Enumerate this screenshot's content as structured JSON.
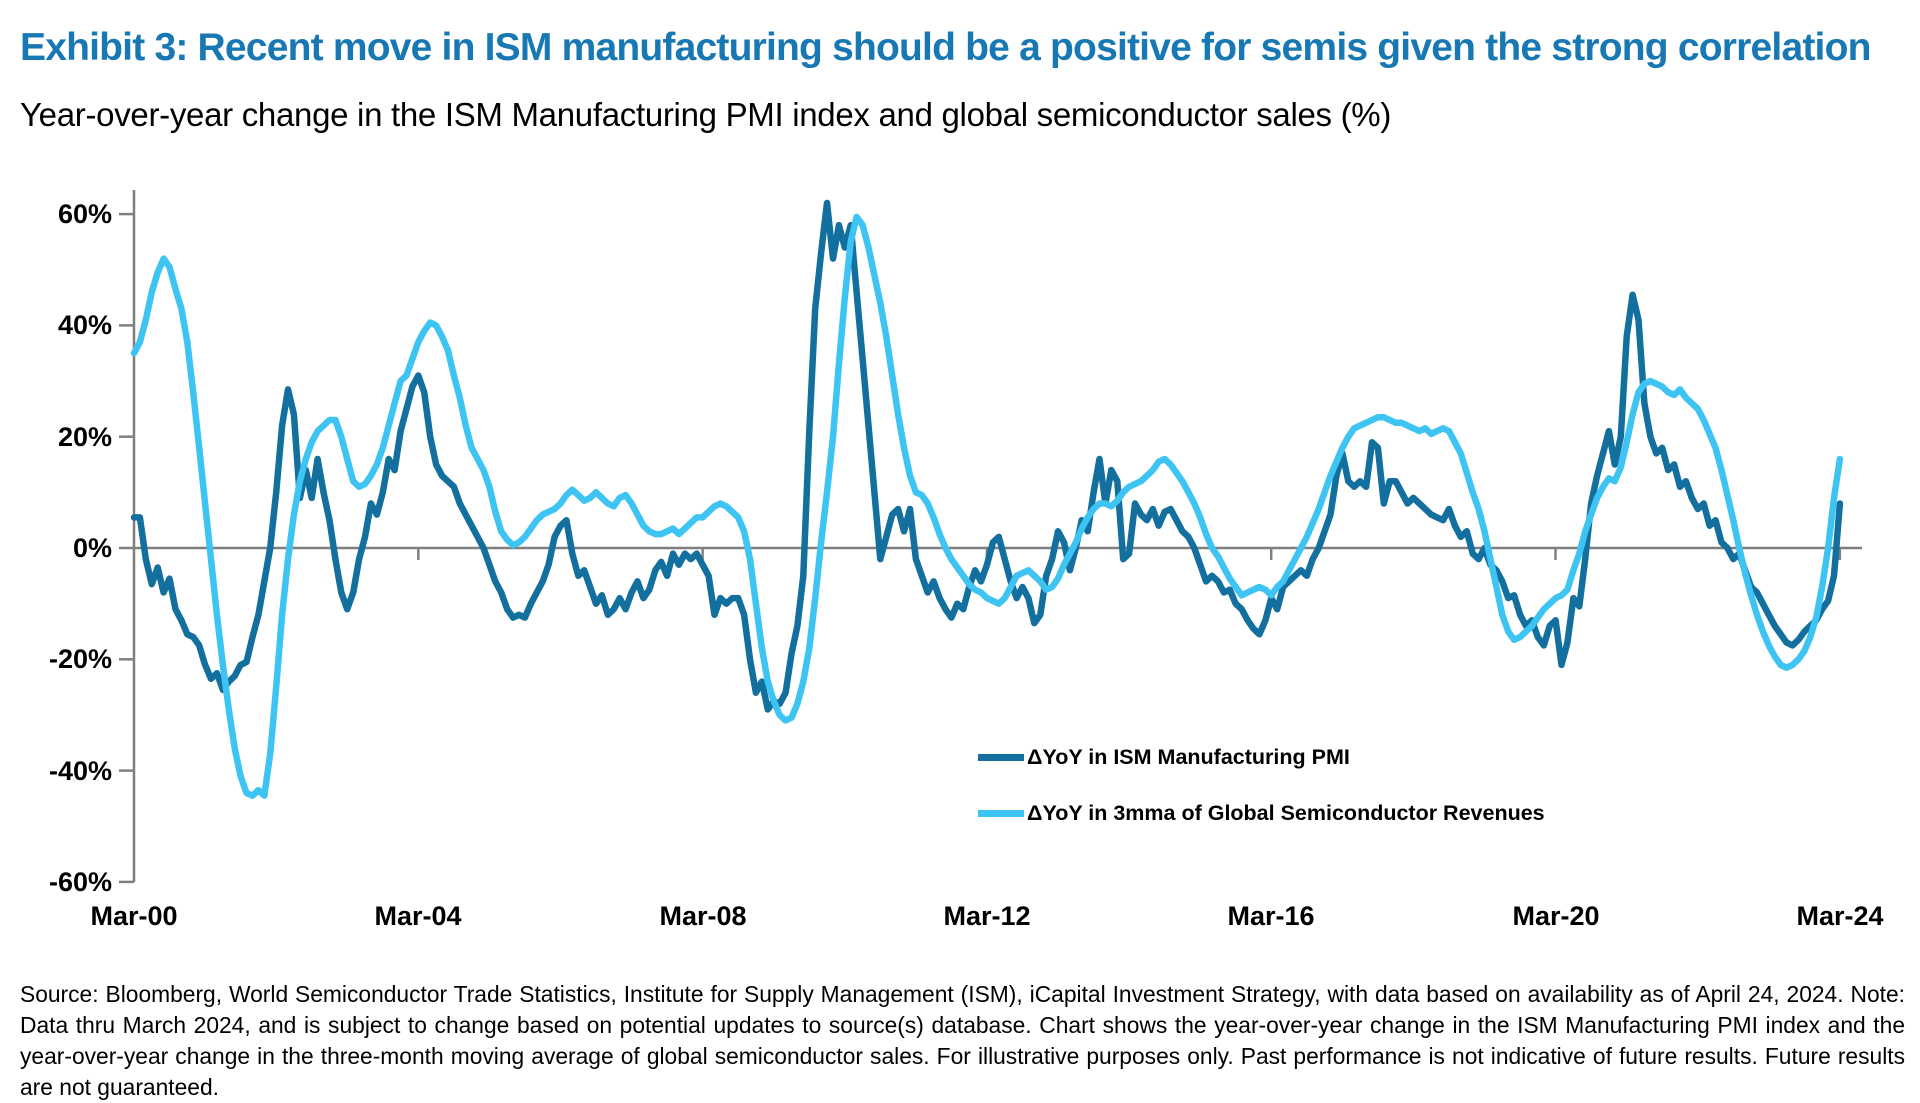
{
  "page": {
    "title": "Exhibit 3: Recent move in ISM manufacturing should be a positive for semis given the strong correlation",
    "subtitle": "Year-over-year change in the ISM Manufacturing PMI index and global semiconductor sales (%)",
    "source_note": "Source: Bloomberg, World Semiconductor Trade Statistics, Institute for Supply Management (ISM), iCapital Investment Strategy, with data based on availability as of April 24, 2024. Note: Data thru March 2024, and is subject to change based on potential updates to source(s) database. Chart shows the year-over-year change in the ISM Manufacturing PMI index and the year-over-year change in the three-month moving average of global semiconductor sales. For illustrative purposes only. Past performance is not indicative of future results. Future results are not guaranteed."
  },
  "chart": {
    "colors": {
      "title_blue": "#1878B3",
      "ism_line": "#136F9E",
      "semis_line": "#3EC4F2",
      "axis_gray": "#7F7F7F",
      "label_black": "#000000"
    },
    "y_axis": {
      "tick_labels": [
        "60%",
        "40%",
        "20%",
        "0%",
        "-20%",
        "-40%",
        "-60%"
      ],
      "tick_values": [
        60,
        40,
        20,
        0,
        -20,
        -40,
        -60
      ]
    },
    "x_axis": {
      "tick_labels": [
        "Mar-00",
        "Mar-04",
        "Mar-08",
        "Mar-12",
        "Mar-16",
        "Mar-20",
        "Mar-24"
      ]
    }
  },
  "chart_data": {
    "type": "line",
    "title": "Year-over-year change in the ISM Manufacturing PMI index and global semiconductor sales (%)",
    "xlabel": "",
    "ylabel": "",
    "x_start": "2000-03",
    "x_end": "2024-03",
    "frequency": "monthly",
    "x_tick_labels": [
      "Mar-00",
      "Mar-04",
      "Mar-08",
      "Mar-12",
      "Mar-16",
      "Mar-20",
      "Mar-24"
    ],
    "y_ticks": [
      60,
      40,
      20,
      0,
      -20,
      -40,
      -60
    ],
    "ylim": [
      -60,
      60
    ],
    "grid": "zero-line-only",
    "legend_position": "inside-right-middle",
    "series": [
      {
        "name": "ΔYoY in ISM Manufacturing PMI",
        "color": "#136F9E",
        "values": [
          5.5,
          5.5,
          -2,
          -6.5,
          -3.5,
          -8,
          -5.5,
          -11,
          -13,
          -15.5,
          -16,
          -17.5,
          -21,
          -23.5,
          -22.5,
          -25.5,
          -24,
          -23,
          -21,
          -20.5,
          -16,
          -12,
          -6,
          0,
          10,
          22,
          28.5,
          24,
          9,
          14,
          9,
          16,
          10,
          5,
          -2,
          -8,
          -11,
          -8,
          -2,
          2,
          8,
          6,
          10,
          16,
          14,
          21,
          25,
          29,
          31,
          28,
          20,
          15,
          13,
          12,
          11,
          8,
          6,
          4,
          2,
          0,
          -3,
          -6,
          -8,
          -11,
          -12.5,
          -12,
          -12.5,
          -10,
          -8,
          -6,
          -3,
          2,
          4,
          5,
          -1,
          -5,
          -4,
          -7,
          -10,
          -8.5,
          -12,
          -11,
          -9,
          -11,
          -8,
          -6,
          -9,
          -7.5,
          -4,
          -2.5,
          -5,
          -1,
          -3,
          -1,
          -2,
          -1,
          -3,
          -5,
          -12,
          -9,
          -10,
          -9,
          -9,
          -12,
          -20,
          -26,
          -24,
          -29,
          -27.5,
          -28,
          -26,
          -19,
          -14,
          -5,
          21,
          43,
          53,
          62,
          52,
          58,
          54,
          58,
          46,
          34,
          22,
          10,
          -2,
          2,
          6,
          7,
          3,
          7,
          -2,
          -5,
          -8,
          -6,
          -9,
          -11,
          -12.5,
          -10,
          -11,
          -7,
          -4,
          -6,
          -3,
          1,
          2,
          -2,
          -6,
          -9,
          -7,
          -9,
          -13.5,
          -12,
          -5,
          -2,
          3,
          1,
          -4,
          0,
          5,
          3,
          10,
          16,
          8,
          14,
          12,
          -2,
          -1,
          8,
          6,
          5,
          7,
          4,
          6.5,
          7,
          5,
          3,
          2,
          0,
          -3,
          -6,
          -5,
          -6,
          -8,
          -7.5,
          -10,
          -11,
          -13,
          -14.5,
          -15.5,
          -13,
          -9,
          -11,
          -7,
          -6,
          -5,
          -4,
          -5,
          -2,
          0,
          3,
          6,
          13,
          17,
          12,
          11,
          12,
          11,
          19,
          18,
          8,
          12,
          12,
          10,
          8,
          9,
          8,
          7,
          6,
          5.5,
          5,
          7,
          4,
          2,
          3,
          -1,
          -2,
          0,
          -3,
          -4,
          -6,
          -9,
          -8.5,
          -12,
          -14,
          -13,
          -16,
          -17.5,
          -14,
          -13,
          -21,
          -17,
          -9,
          -10.5,
          -2,
          8,
          13,
          17,
          21,
          15,
          20,
          38,
          45.5,
          41,
          26,
          20,
          17,
          18,
          14,
          15,
          11,
          12,
          9,
          7,
          8,
          4,
          5,
          1,
          0,
          -2,
          -1,
          -4,
          -7,
          -8,
          -10,
          -12,
          -14,
          -15.5,
          -17,
          -17.5,
          -16.5,
          -15,
          -14,
          -13,
          -11,
          -9.5,
          -5,
          8
        ]
      },
      {
        "name": "ΔYoY in 3mma of Global Semiconductor Revenues",
        "color": "#3EC4F2",
        "values": [
          35,
          37,
          41,
          46,
          49.5,
          52,
          50.5,
          46.5,
          43,
          37,
          28,
          18,
          8,
          -2,
          -12,
          -21,
          -29,
          -36,
          -41,
          -44,
          -44.5,
          -43.5,
          -44.5,
          -37,
          -25,
          -12,
          -2,
          6,
          12,
          16,
          19,
          21,
          22,
          23,
          23,
          20,
          16,
          12,
          11,
          11.5,
          13,
          15,
          18,
          22,
          26,
          30,
          31,
          34,
          37,
          39,
          40.5,
          40,
          38,
          35.5,
          31,
          27,
          22,
          18,
          16,
          14,
          11,
          6.5,
          3,
          1.5,
          0.5,
          1,
          2,
          3.5,
          5,
          6,
          6.5,
          7,
          8,
          9.5,
          10.5,
          9.5,
          8.5,
          9,
          10,
          9,
          8,
          7.5,
          9,
          9.5,
          8,
          6,
          4,
          3,
          2.5,
          2.5,
          3,
          3.5,
          2.5,
          3.5,
          4.5,
          5.5,
          5.5,
          6.5,
          7.5,
          8,
          7.5,
          6.5,
          5.5,
          3,
          -2,
          -10,
          -18,
          -24,
          -27.5,
          -30,
          -31,
          -30.5,
          -28,
          -24,
          -18,
          -9,
          1,
          10,
          20,
          33,
          45,
          55,
          59.5,
          58,
          54,
          49,
          44,
          38,
          31,
          24,
          18,
          13,
          10,
          9.5,
          8,
          5.5,
          2.5,
          0,
          -2,
          -3.5,
          -5,
          -6.5,
          -7.5,
          -8,
          -9,
          -9.5,
          -10,
          -9,
          -7,
          -5,
          -4.5,
          -4,
          -5,
          -6,
          -7.5,
          -7,
          -5.5,
          -3,
          -1,
          1,
          3.5,
          5.5,
          7,
          8,
          8,
          7.5,
          8.5,
          10,
          11,
          11.5,
          12,
          13,
          14,
          15.5,
          16,
          15,
          13.5,
          12,
          10,
          8,
          5.5,
          2.5,
          0,
          -1.5,
          -3.5,
          -5.5,
          -7,
          -8.5,
          -8,
          -7.5,
          -7,
          -7.5,
          -8.5,
          -7,
          -6,
          -4,
          -2,
          0,
          2,
          4.5,
          7,
          10,
          13,
          15.5,
          18,
          20,
          21.5,
          22,
          22.5,
          23,
          23.5,
          23.5,
          23,
          22.5,
          22.5,
          22,
          21.5,
          21,
          21.5,
          20.5,
          21,
          21.5,
          21,
          19,
          17,
          13.5,
          10,
          7,
          3,
          -2,
          -7,
          -12,
          -15,
          -16.5,
          -16,
          -15,
          -14,
          -12.5,
          -11,
          -10,
          -9,
          -8.5,
          -7.5,
          -4,
          -1,
          3,
          6,
          9,
          11,
          12.5,
          12,
          14.5,
          19,
          24,
          28,
          29.5,
          30,
          29.5,
          29,
          28,
          27.5,
          28.5,
          27,
          26,
          25,
          23,
          20.5,
          18,
          14,
          9.5,
          5,
          0,
          -4.5,
          -8.5,
          -12,
          -15,
          -17.5,
          -19.5,
          -21,
          -21.5,
          -21,
          -20,
          -18.5,
          -16,
          -12.5,
          -7,
          0,
          9,
          16
        ]
      }
    ]
  }
}
